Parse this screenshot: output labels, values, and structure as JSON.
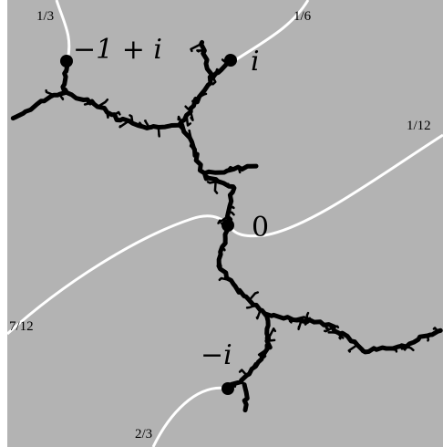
{
  "points": [
    {
      "label": "−1 + i"
    },
    {
      "label": "i"
    },
    {
      "label": "0"
    },
    {
      "label": "−i"
    }
  ],
  "rays": [
    {
      "label": "1/3"
    },
    {
      "label": "1/6"
    },
    {
      "label": "1/12"
    },
    {
      "label": "7/12"
    },
    {
      "label": "2/3"
    }
  ]
}
